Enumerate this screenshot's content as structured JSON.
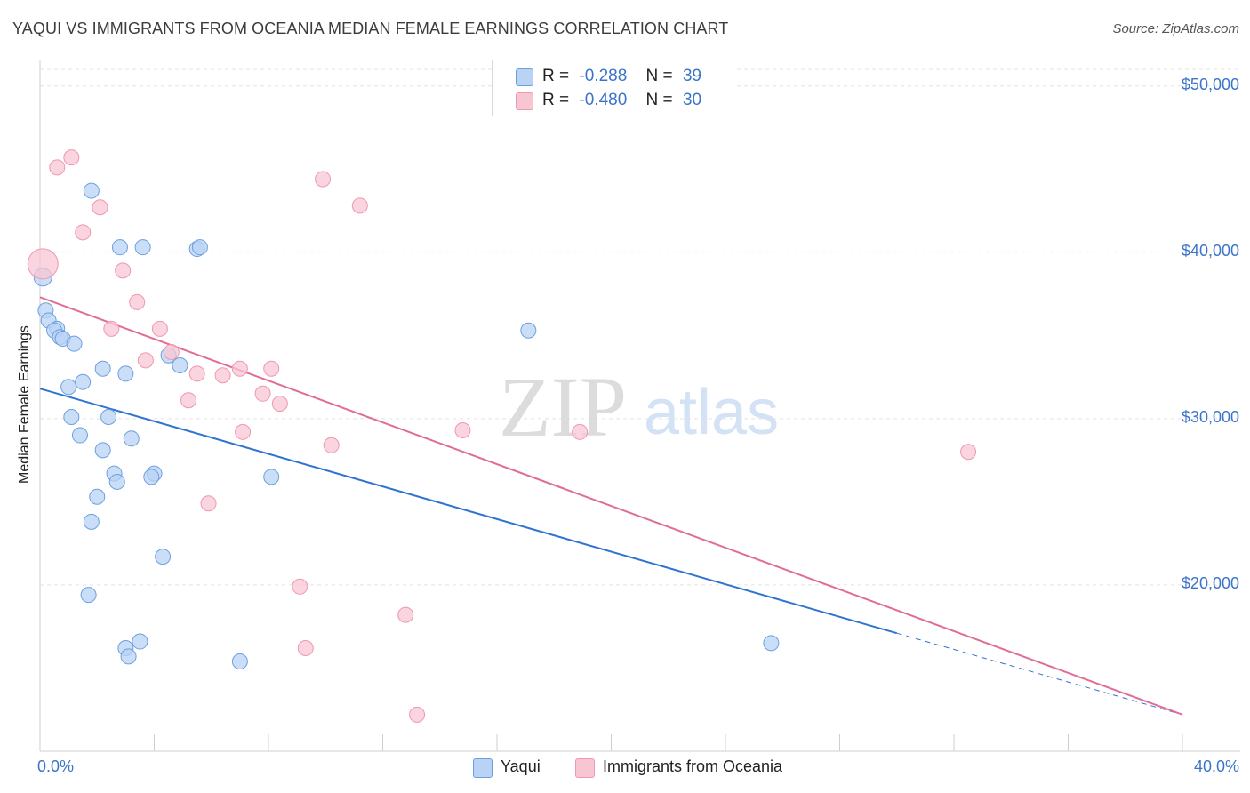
{
  "title": "YAQUI VS IMMIGRANTS FROM OCEANIA MEDIAN FEMALE EARNINGS CORRELATION CHART",
  "source": "Source: ZipAtlas.com",
  "watermark": {
    "zip": "ZIP",
    "atlas": "atlas"
  },
  "legend": {
    "r_label": "R =",
    "n_label": "N =",
    "rows": [
      {
        "r": "-0.288",
        "n": "39"
      },
      {
        "r": "-0.480",
        "n": "30"
      }
    ]
  },
  "colors": {
    "yaqui_fill": "#b9d3f4",
    "yaqui_stroke": "#6d9fe0",
    "yaqui_line": "#2f74d0",
    "oceania_fill": "#f8c6d3",
    "oceania_stroke": "#ee98b1",
    "oceania_line": "#e06d95",
    "accent_text": "#3b74c9",
    "grid": "#e3e3e3"
  },
  "chart_data": {
    "type": "scatter",
    "title": "YAQUI VS IMMIGRANTS FROM OCEANIA MEDIAN FEMALE EARNINGS CORRELATION CHART",
    "xlabel": "",
    "ylabel": "Median Female Earnings",
    "xlim": [
      0,
      40
    ],
    "ylim": [
      10000,
      51000
    ],
    "x_tick_labels": [
      "0.0%",
      "40.0%"
    ],
    "y_ticks": [
      20000,
      30000,
      40000,
      50000
    ],
    "y_tick_labels": [
      "$20,000",
      "$30,000",
      "$40,000",
      "$50,000"
    ],
    "grid": true,
    "legend_position": "top-center",
    "series": [
      {
        "name": "Yaqui",
        "points": [
          [
            0.1,
            38500
          ],
          [
            0.2,
            36500
          ],
          [
            0.3,
            35900
          ],
          [
            0.6,
            35400
          ],
          [
            0.5,
            35300
          ],
          [
            0.7,
            34900
          ],
          [
            0.8,
            34800
          ],
          [
            1.2,
            34500
          ],
          [
            1.8,
            43700
          ],
          [
            2.8,
            40300
          ],
          [
            3.6,
            40300
          ],
          [
            5.5,
            40200
          ],
          [
            5.6,
            40300
          ],
          [
            4.5,
            33800
          ],
          [
            4.9,
            33200
          ],
          [
            2.2,
            33000
          ],
          [
            3.0,
            32700
          ],
          [
            1.5,
            32200
          ],
          [
            1.0,
            31900
          ],
          [
            1.1,
            30100
          ],
          [
            2.4,
            30100
          ],
          [
            1.4,
            29000
          ],
          [
            3.2,
            28800
          ],
          [
            2.2,
            28100
          ],
          [
            2.6,
            26700
          ],
          [
            4.0,
            26700
          ],
          [
            3.9,
            26500
          ],
          [
            2.7,
            26200
          ],
          [
            8.1,
            26500
          ],
          [
            2.0,
            25300
          ],
          [
            1.8,
            23800
          ],
          [
            4.3,
            21700
          ],
          [
            1.7,
            19400
          ],
          [
            3.5,
            16600
          ],
          [
            3.0,
            16200
          ],
          [
            3.1,
            15700
          ],
          [
            7.0,
            15400
          ],
          [
            17.1,
            35300
          ],
          [
            25.6,
            16500
          ]
        ]
      },
      {
        "name": "Immigrants from Oceania",
        "points": [
          [
            0.1,
            39300
          ],
          [
            1.1,
            45700
          ],
          [
            0.6,
            45100
          ],
          [
            2.1,
            42700
          ],
          [
            1.5,
            41200
          ],
          [
            2.9,
            38900
          ],
          [
            3.4,
            37000
          ],
          [
            2.5,
            35400
          ],
          [
            4.2,
            35400
          ],
          [
            3.7,
            33500
          ],
          [
            4.6,
            34000
          ],
          [
            5.5,
            32700
          ],
          [
            6.4,
            32600
          ],
          [
            7.0,
            33000
          ],
          [
            8.1,
            33000
          ],
          [
            7.8,
            31500
          ],
          [
            5.2,
            31100
          ],
          [
            8.4,
            30900
          ],
          [
            7.1,
            29200
          ],
          [
            10.2,
            28400
          ],
          [
            14.8,
            29300
          ],
          [
            18.9,
            29200
          ],
          [
            9.9,
            44400
          ],
          [
            11.2,
            42800
          ],
          [
            5.9,
            24900
          ],
          [
            9.1,
            19900
          ],
          [
            9.3,
            16200
          ],
          [
            12.8,
            18200
          ],
          [
            13.2,
            12200
          ],
          [
            32.5,
            28000
          ]
        ]
      }
    ],
    "trend_lines": [
      {
        "name": "Yaqui",
        "x": [
          0,
          30,
          40
        ],
        "y": [
          31800,
          17100,
          12200
        ],
        "dashed_from_x": 30
      },
      {
        "name": "Immigrants from Oceania",
        "x": [
          0,
          40
        ],
        "y": [
          37300,
          12200
        ]
      }
    ]
  },
  "bottom_legend": [
    {
      "label": "Yaqui"
    },
    {
      "label": "Immigrants from Oceania"
    }
  ]
}
